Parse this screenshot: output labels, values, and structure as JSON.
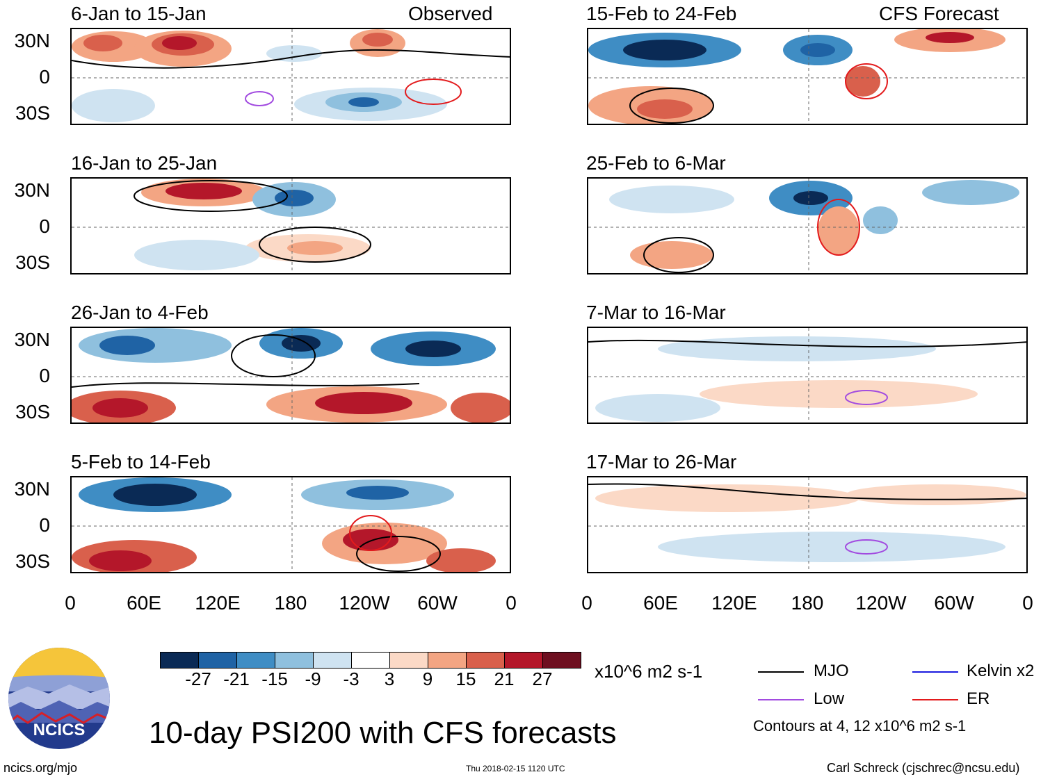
{
  "panels": [
    {
      "title": "6-Jan to 15-Jan",
      "tag": "Observed"
    },
    {
      "title": "15-Feb to 24-Feb",
      "tag": "CFS Forecast"
    },
    {
      "title": "16-Jan to 25-Jan",
      "tag": ""
    },
    {
      "title": "25-Feb to 6-Mar",
      "tag": ""
    },
    {
      "title": "26-Jan to 4-Feb",
      "tag": ""
    },
    {
      "title": "7-Mar to 16-Mar",
      "tag": ""
    },
    {
      "title": "5-Feb to 14-Feb",
      "tag": ""
    },
    {
      "title": "17-Mar to 26-Mar",
      "tag": ""
    }
  ],
  "lat_labels": [
    "30N",
    "0",
    "30S"
  ],
  "lon_labels": [
    "0",
    "60E",
    "120E",
    "180",
    "120W",
    "60W",
    "0"
  ],
  "colorbar": {
    "colors": [
      "#0a2a55",
      "#1f63a5",
      "#3f8dc4",
      "#8fc0de",
      "#cfe3f1",
      "#ffffff",
      "#fbd9c6",
      "#f3a583",
      "#d9604c",
      "#b4172a",
      "#6e0f20"
    ],
    "ticks": [
      "-27",
      "-21",
      "-15",
      "-9",
      "-3",
      "3",
      "9",
      "15",
      "21",
      "27"
    ],
    "units": "x10^6 m2 s-1"
  },
  "legend": {
    "items": [
      {
        "label": "MJO",
        "color": "#000000"
      },
      {
        "label": "Kelvin x2",
        "color": "#1a1adf"
      },
      {
        "label": "Low",
        "color": "#a24be0"
      },
      {
        "label": "ER",
        "color": "#e31a1c"
      }
    ],
    "contours_note": "Contours at 4, 12 x10^6 m2 s-1"
  },
  "logo_text": "NCICS",
  "main_title": "10-day PSI200 with CFS forecasts",
  "footer": {
    "left": "ncics.org/mjo",
    "center": "Thu 2018-02-15 1120 UTC",
    "right": "Carl Schreck (cjschrec@ncsu.edu)"
  }
}
